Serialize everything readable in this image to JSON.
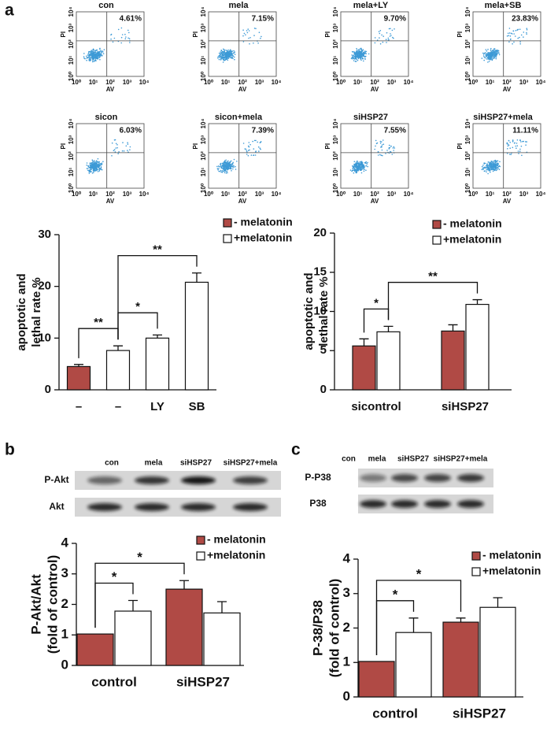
{
  "panel_labels": [
    "a",
    "b",
    "c"
  ],
  "flow_plots": {
    "xlabel": "AV",
    "ylabel": "PI",
    "ticks": [
      "10⁰",
      "10¹",
      "10²",
      "10³",
      "10⁴"
    ],
    "plots": [
      {
        "title": "con",
        "percent": "4.61%"
      },
      {
        "title": "mela",
        "percent": "7.15%"
      },
      {
        "title": "mela+LY",
        "percent": "9.70%"
      },
      {
        "title": "mela+SB",
        "percent": "23.83%"
      },
      {
        "title": "sicon",
        "percent": "6.03%"
      },
      {
        "title": "sicon+mela",
        "percent": "7.39%"
      },
      {
        "title": "siHSP27",
        "percent": "7.55%"
      },
      {
        "title": "siHSP27+mela",
        "percent": "11.11%"
      }
    ]
  },
  "blots": [
    {
      "lanes": [
        "con",
        "mela",
        "siHSP27",
        "siHSP27+mela"
      ],
      "rows": [
        "P-Akt",
        "Akt"
      ]
    },
    {
      "lanes": [
        "con",
        "mela",
        "siHSP27",
        "siHSP27+mela"
      ],
      "rows": [
        "P-P38",
        "P38"
      ]
    }
  ],
  "chart_data": [
    {
      "type": "bar",
      "categories": [
        "–",
        "–",
        "LY",
        "SB"
      ],
      "ylabel": [
        "apoptotic and",
        "lethal rate %"
      ],
      "ylim": [
        0,
        30
      ],
      "yticks": [
        0,
        10,
        20,
        30
      ],
      "series": [
        {
          "name": "- melatonin",
          "color": "#b04a45",
          "values": [
            4.5,
            null,
            null,
            null
          ],
          "errors": [
            0.4,
            null,
            null,
            null
          ]
        },
        {
          "name": "+melatonin",
          "color": "#ffffff",
          "values": [
            null,
            7.6,
            10.0,
            20.8
          ],
          "errors": [
            null,
            0.9,
            0.6,
            1.8
          ]
        }
      ],
      "annotations": [
        "**",
        "*",
        "**"
      ]
    },
    {
      "type": "bar",
      "categories": [
        "sicontrol",
        "siHSP27"
      ],
      "ylabel": [
        "apoptotic and",
        "lethal rate %"
      ],
      "ylim": [
        0,
        20
      ],
      "yticks": [
        0,
        5,
        10,
        15,
        20
      ],
      "series": [
        {
          "name": "- melatonin",
          "color": "#b04a45",
          "values": [
            5.6,
            7.5
          ],
          "errors": [
            0.9,
            0.8
          ]
        },
        {
          "name": "+melatonin",
          "color": "#ffffff",
          "values": [
            7.4,
            10.9
          ],
          "errors": [
            0.7,
            0.6
          ]
        }
      ],
      "annotations": [
        "*",
        "**"
      ]
    },
    {
      "type": "bar",
      "categories": [
        "control",
        "siHSP27"
      ],
      "ylabel": [
        "P-Akt/Akt",
        "(fold of control)"
      ],
      "ylim": [
        0,
        4
      ],
      "yticks": [
        0,
        1,
        2,
        3,
        4
      ],
      "series": [
        {
          "name": "- melatonin",
          "color": "#b04a45",
          "values": [
            1.03,
            2.5
          ],
          "errors": [
            null,
            0.28
          ]
        },
        {
          "name": "+melatonin",
          "color": "#ffffff",
          "values": [
            1.78,
            1.72
          ],
          "errors": [
            0.35,
            0.37
          ]
        }
      ],
      "annotations": [
        "*",
        "*"
      ]
    },
    {
      "type": "bar",
      "categories": [
        "control",
        "siHSP27"
      ],
      "ylabel": [
        "P-38/P38",
        "(fold of control)"
      ],
      "ylim": [
        0,
        4
      ],
      "yticks": [
        0,
        1,
        2,
        3,
        4
      ],
      "series": [
        {
          "name": "- melatonin",
          "color": "#b04a45",
          "values": [
            1.03,
            2.17
          ],
          "errors": [
            null,
            0.12
          ]
        },
        {
          "name": "+melatonin",
          "color": "#ffffff",
          "values": [
            1.87,
            2.6
          ],
          "errors": [
            0.42,
            0.28
          ]
        }
      ],
      "annotations": [
        "*",
        "*"
      ]
    }
  ]
}
